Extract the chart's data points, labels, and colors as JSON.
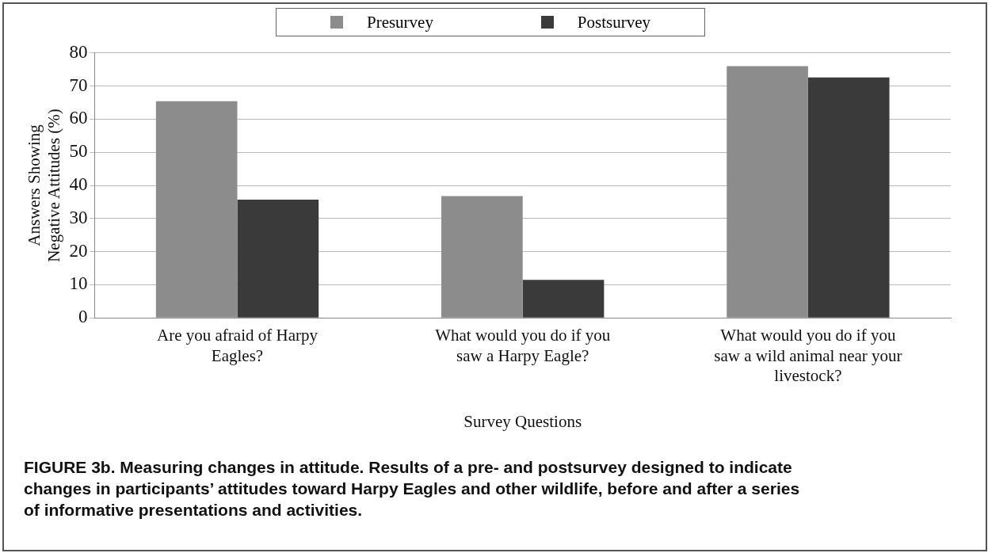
{
  "chart_data": {
    "type": "bar",
    "categories": [
      "Are you afraid of Harpy Eagles?",
      "What would you do if you saw a Harpy Eagle?",
      "What would you do if you saw a wild animal near your livestock?"
    ],
    "series": [
      {
        "name": "Presurvey",
        "color": "#8c8c8c",
        "values": [
          65.4,
          36.8,
          76
        ]
      },
      {
        "name": "Postsurvey",
        "color": "#3a3a3a",
        "values": [
          35.7,
          11.5,
          72.6
        ]
      }
    ],
    "xlabel": "Survey Questions",
    "ylabel": "Answers Showing Negative Attitudes (%)",
    "ylim": [
      0,
      80
    ],
    "yticks": [
      0,
      10,
      20,
      30,
      40,
      50,
      60,
      70,
      80
    ],
    "grid": "y",
    "legend": "top",
    "annotations": [
      "FIGURE 3b. Measuring changes in attitude. Results of a pre- and postsurvey designed to indicate changes in participants’ attitudes toward Harpy Eagles and other wildlife, before and after a series of informative presentations and activities."
    ]
  }
}
